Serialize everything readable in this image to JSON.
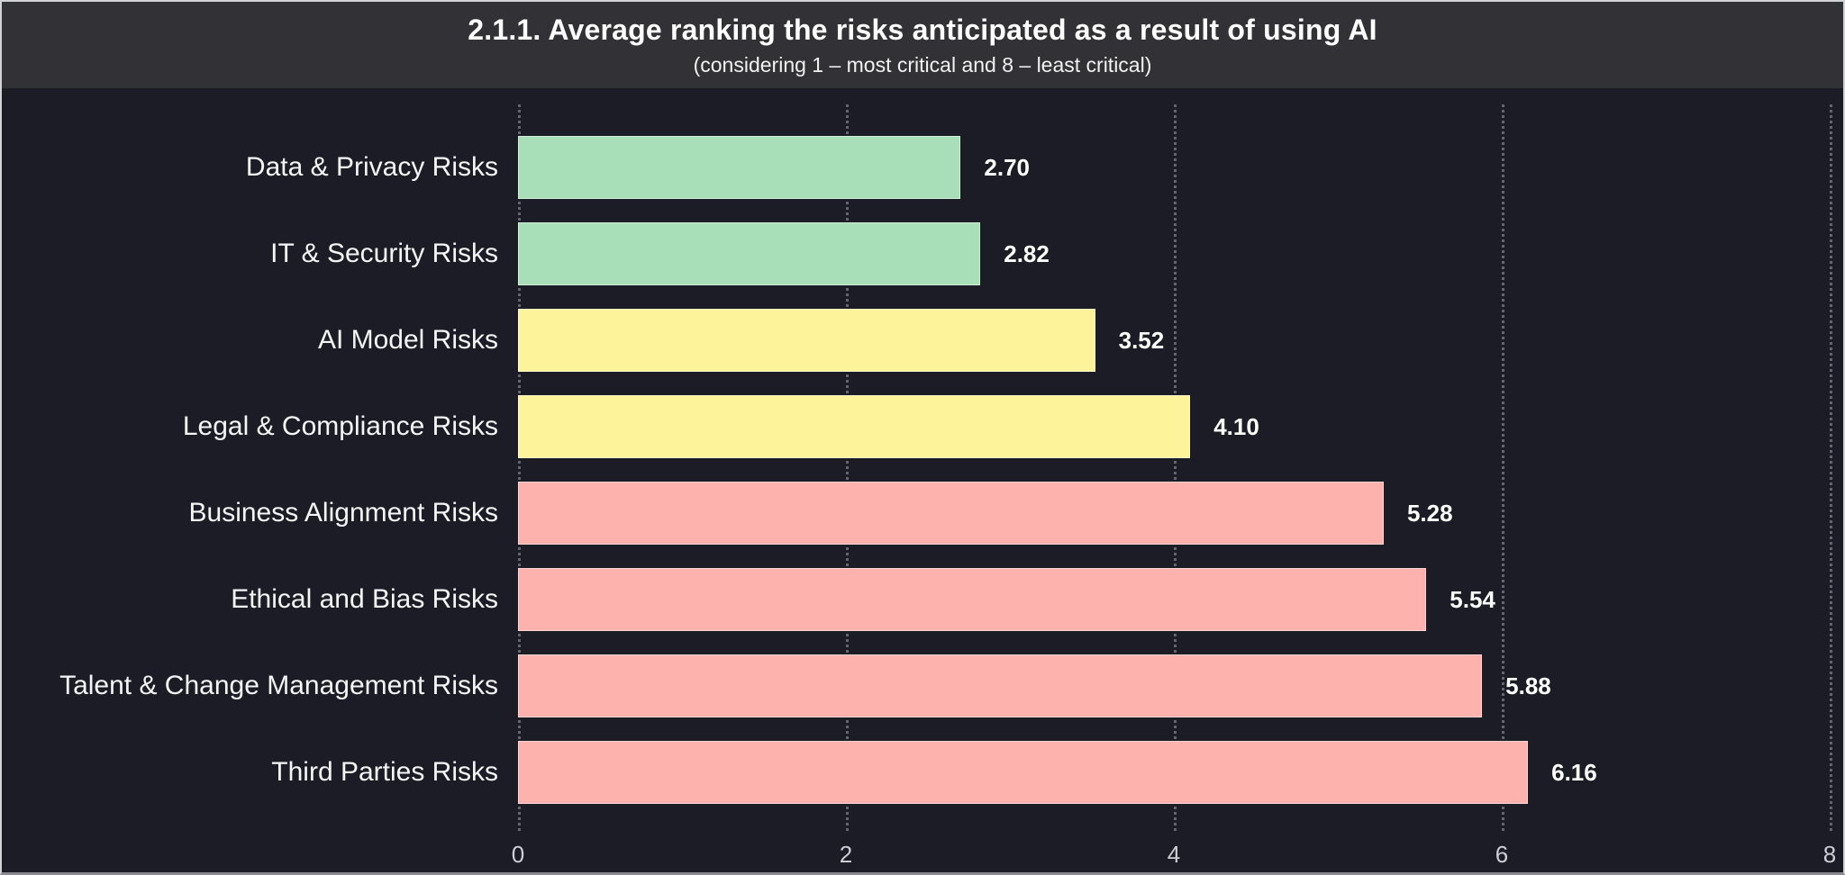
{
  "header": {
    "title": "2.1.1. Average ranking the risks anticipated as a result of using AI",
    "subtitle": "(considering 1 – most critical and 8 – least critical)"
  },
  "chart_data": {
    "type": "bar",
    "orientation": "horizontal",
    "title": "2.1.1. Average ranking the risks anticipated as a result of using AI",
    "subtitle": "(considering 1 – most critical and 8 – least critical)",
    "categories": [
      "Data & Privacy Risks",
      "IT & Security Risks",
      "AI Model Risks",
      "Legal & Compliance Risks",
      "Business Alignment Risks",
      "Ethical and Bias Risks",
      "Talent & Change Management Risks",
      "Third Parties Risks"
    ],
    "values": [
      2.7,
      2.82,
      3.52,
      4.1,
      5.28,
      5.54,
      5.88,
      6.16
    ],
    "value_labels": [
      "2.70",
      "2.82",
      "3.52",
      "4.10",
      "5.28",
      "5.54",
      "5.88",
      "6.16"
    ],
    "bar_colors": [
      "#a9dfb8",
      "#a9dfb8",
      "#fdf39b",
      "#fdf39b",
      "#fdb2ae",
      "#fdb2ae",
      "#fdb2ae",
      "#fdb2ae"
    ],
    "xlabel": "",
    "ylabel": "",
    "xlim": [
      0,
      8
    ],
    "xticks": [
      "0",
      "2",
      "4",
      "6",
      "8"
    ],
    "grid": "vertical-dotted",
    "legend": "none"
  },
  "colors": {
    "chart_background": "#1c1c27",
    "header_background": "#323136",
    "green": "#a9dfb8",
    "yellow": "#fdf39b",
    "pink": "#fdb2ae",
    "text": "#ffffff",
    "tick_text": "#cdced4"
  }
}
